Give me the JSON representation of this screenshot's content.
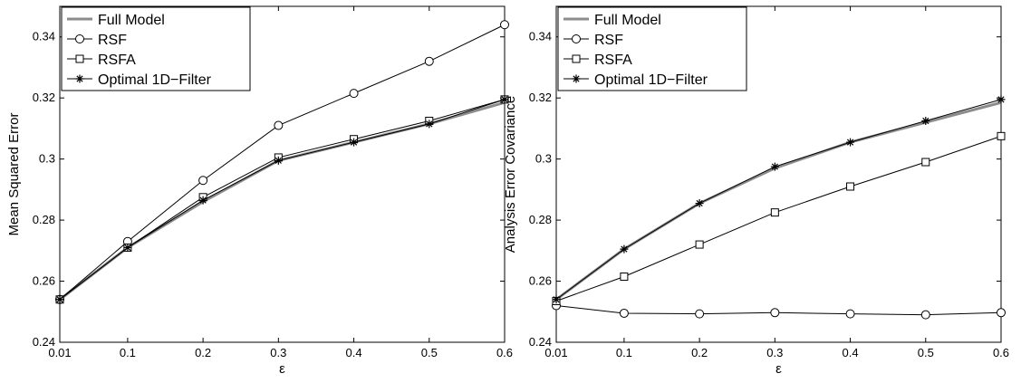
{
  "chart_data": [
    {
      "type": "line",
      "title": "",
      "xlabel": "ε",
      "ylabel": "Mean Squared Error",
      "x": [
        0.01,
        0.1,
        0.2,
        0.3,
        0.4,
        0.5,
        0.6
      ],
      "xticks": [
        "0.01",
        "0.1",
        "0.2",
        "0.3",
        "0.4",
        "0.5",
        "0.6"
      ],
      "xlim": [
        0.01,
        0.6
      ],
      "ylim": [
        0.24,
        0.35
      ],
      "yticks": [
        "0.24",
        "0.26",
        "0.28",
        "0.3",
        "0.32",
        "0.34"
      ],
      "grid": false,
      "legend_position": "top-left",
      "series": [
        {
          "name": "Full Model",
          "marker": "none",
          "color": "#8c8c8c",
          "values": [
            0.254,
            0.271,
            0.286,
            0.2995,
            0.3055,
            0.3115,
            0.3185
          ]
        },
        {
          "name": "RSF",
          "marker": "circle",
          "color": "#000000",
          "values": [
            0.254,
            0.273,
            0.293,
            0.311,
            0.3215,
            0.332,
            0.344
          ]
        },
        {
          "name": "RSFA",
          "marker": "square",
          "color": "#000000",
          "values": [
            0.254,
            0.271,
            0.2875,
            0.3005,
            0.3065,
            0.3125,
            0.3195
          ]
        },
        {
          "name": "Optimal 1D−Filter",
          "marker": "star",
          "color": "#000000",
          "values": [
            0.254,
            0.271,
            0.2865,
            0.2995,
            0.3055,
            0.3115,
            0.3195
          ]
        }
      ]
    },
    {
      "type": "line",
      "title": "",
      "xlabel": "ε",
      "ylabel": "Analysis Error Covariance",
      "x": [
        0.01,
        0.1,
        0.2,
        0.3,
        0.4,
        0.5,
        0.6
      ],
      "xticks": [
        "0.01",
        "0.1",
        "0.2",
        "0.3",
        "0.4",
        "0.5",
        "0.6"
      ],
      "xlim": [
        0.01,
        0.6
      ],
      "ylim": [
        0.24,
        0.35
      ],
      "yticks": [
        "0.24",
        "0.26",
        "0.28",
        "0.3",
        "0.32",
        "0.34"
      ],
      "grid": false,
      "legend_position": "top-left",
      "series": [
        {
          "name": "Full Model",
          "marker": "none",
          "color": "#8c8c8c",
          "values": [
            0.254,
            0.2705,
            0.2855,
            0.297,
            0.3055,
            0.312,
            0.3185
          ]
        },
        {
          "name": "RSF",
          "marker": "circle",
          "color": "#000000",
          "values": [
            0.252,
            0.2495,
            0.2493,
            0.2497,
            0.2493,
            0.249,
            0.2497
          ]
        },
        {
          "name": "RSFA",
          "marker": "square",
          "color": "#000000",
          "values": [
            0.2535,
            0.2615,
            0.272,
            0.2825,
            0.291,
            0.299,
            0.3075
          ]
        },
        {
          "name": "Optimal 1D−Filter",
          "marker": "star",
          "color": "#000000",
          "values": [
            0.254,
            0.2705,
            0.2855,
            0.2975,
            0.3055,
            0.3125,
            0.3195
          ]
        }
      ]
    }
  ]
}
